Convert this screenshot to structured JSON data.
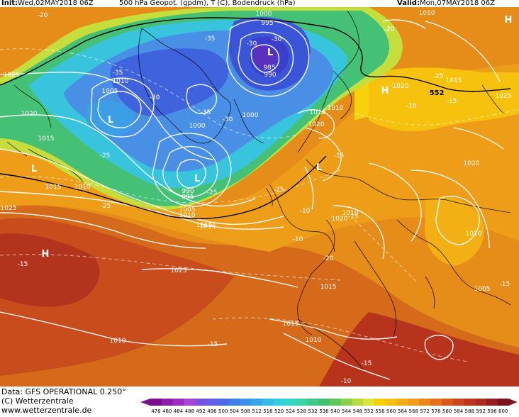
{
  "header": {
    "init_label": "Init:",
    "init_value": "Wed,02MAY2018 06Z",
    "title": "500 hPa Geopot. (gpdm), T (C), Bodendruck (hPa)",
    "valid_label": "Valid:",
    "valid_value": "Mon,07MAY2018 06Z"
  },
  "map": {
    "pressure_labels": [
      "1000",
      "995",
      "985",
      "990",
      "1010",
      "1005",
      "1025",
      "1020",
      "1015",
      "1000",
      "1000",
      "1010",
      "1015",
      "1020",
      "1010",
      "1015",
      "1020",
      "1015",
      "1020",
      "1025",
      "1020",
      "1010",
      "1005",
      "1010",
      "1015",
      "990",
      "995",
      "1005",
      "1010",
      "1015",
      "1025",
      "1015",
      "1010",
      "1025",
      "1010",
      "1010",
      "1015"
    ],
    "temp_labels": [
      "-20",
      "-35",
      "-30",
      "-35",
      "-30",
      "-35",
      "-30",
      "-25",
      "-25",
      "-25",
      "-30",
      "-20",
      "-25",
      "-15",
      "-25",
      "-15",
      "-20",
      "-15",
      "-15",
      "-10",
      "-15",
      "-15",
      "-10",
      "-15",
      "-10",
      "-10"
    ],
    "centers": [
      "L",
      "L",
      "L",
      "L",
      "H",
      "H",
      "H",
      "L"
    ],
    "contour_label": "552",
    "colors": {
      "deep_blue": "#3d4fd8",
      "blue": "#4f82e8",
      "light_blue": "#3cc8e8",
      "green": "#3ec67b",
      "yellow_green": "#c8e040",
      "yellow": "#f5d000",
      "orange": "#f1a21a",
      "dark_orange": "#e07f12",
      "red_brown": "#c9471b",
      "deep_red": "#b5321b"
    }
  },
  "footer": {
    "data_line": "Data: GFS OPERATIONAL 0.250°",
    "copyright_line": "(C) Wetterzentrale",
    "url_line": "www.wetterzentrale.de"
  },
  "scale": {
    "values": [
      "476",
      "480",
      "484",
      "488",
      "492",
      "496",
      "500",
      "504",
      "508",
      "512",
      "516",
      "520",
      "524",
      "528",
      "532",
      "536",
      "540",
      "544",
      "548",
      "552",
      "556",
      "560",
      "564",
      "568",
      "572",
      "576",
      "580",
      "584",
      "588",
      "592",
      "596",
      "600"
    ],
    "colors": [
      "#7a0f8e",
      "#8b1da8",
      "#9b2ec0",
      "#a646d4",
      "#7a52e0",
      "#5e60e6",
      "#4a6ce8",
      "#3f7fe8",
      "#3b92e6",
      "#38a6e6",
      "#36bae6",
      "#34cde0",
      "#36d6c6",
      "#3bd4a6",
      "#3ec88a",
      "#44c070",
      "#5fc659",
      "#8bd24a",
      "#b6dc40",
      "#dde43a",
      "#f5d000",
      "#f4bf10",
      "#f2ae18",
      "#f09c1c",
      "#ec871c",
      "#e4701c",
      "#d9591d",
      "#cd451d",
      "#bd341d",
      "#a92a1e",
      "#941f1e",
      "#7c141c"
    ]
  }
}
